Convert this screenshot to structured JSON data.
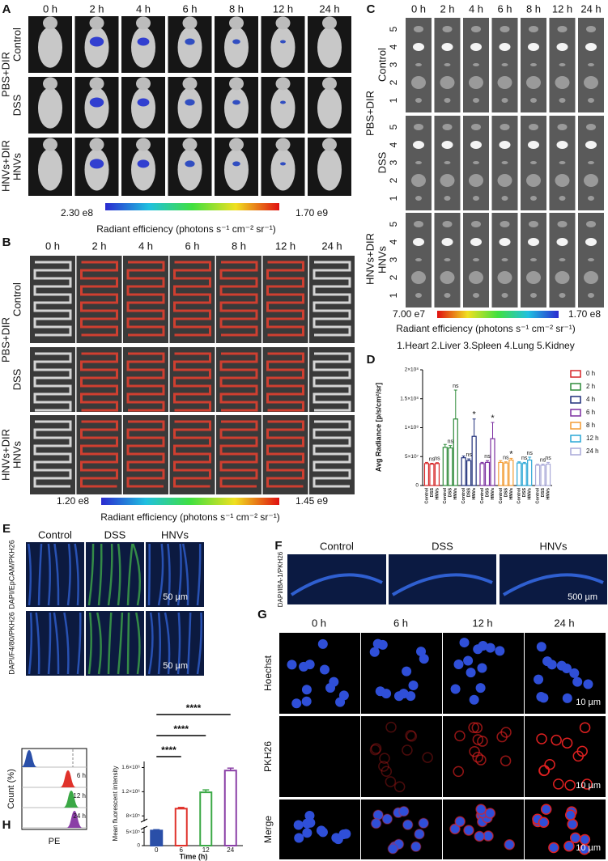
{
  "panels": {
    "A": {
      "label": "A",
      "times": [
        "0 h",
        "2 h",
        "4 h",
        "6 h",
        "8 h",
        "12 h",
        "24 h"
      ],
      "rows": [
        "Control",
        "DSS",
        "HNVs"
      ],
      "groups": [
        "PBS+DIR",
        "HNVs+DIR"
      ],
      "scale_min": "2.30 e8",
      "scale_max": "1.70 e9",
      "scale_title": "Radiant efficiency (photons s⁻¹ cm⁻² sr⁻¹)"
    },
    "B": {
      "label": "B",
      "times": [
        "0 h",
        "2 h",
        "4 h",
        "6 h",
        "8 h",
        "12 h",
        "24 h"
      ],
      "rows": [
        "Control",
        "DSS",
        "HNVs"
      ],
      "groups": [
        "PBS+DIR",
        "HNVs+DIR"
      ],
      "scale_min": "1.20 e8",
      "scale_max": "1.45 e9",
      "scale_title": "Radiant efficiency (photons s⁻¹ cm⁻² sr⁻¹)"
    },
    "C": {
      "label": "C",
      "times": [
        "0 h",
        "2 h",
        "4 h",
        "6 h",
        "8 h",
        "12 h",
        "24 h"
      ],
      "rows": [
        "Control",
        "DSS",
        "HNVs"
      ],
      "groups": [
        "PBS+DIR",
        "HNVs+DIR"
      ],
      "organ_numbers": [
        "5",
        "4",
        "3",
        "2",
        "1"
      ],
      "scale_min": "7.00 e7",
      "scale_max": "1.70 e8",
      "scale_title": "Radiant efficiency (photons s⁻¹ cm⁻² sr⁻¹)",
      "organ_key": "1.Heart 2.Liver 3.Spleen 4.Lung 5.Kidney"
    },
    "E": {
      "label": "E",
      "columns": [
        "Control",
        "DSS",
        "HNVs"
      ],
      "rows": [
        "DAPI/EpCAM/PKH26",
        "DAPI/F4/80/PKH26"
      ],
      "scale_bar": "50 µm"
    },
    "F": {
      "label": "F",
      "columns": [
        "Control",
        "DSS",
        "HNVs"
      ],
      "row": "DAPI/IBA-1/PKH26",
      "scale_bar": "500 µm"
    },
    "G": {
      "label": "G",
      "columns": [
        "0 h",
        "6 h",
        "12 h",
        "24 h"
      ],
      "rows": [
        "Hoechst",
        "PKH26",
        "Merge"
      ],
      "scale_bar": "10 µm"
    },
    "H": {
      "label": "H",
      "histogram_labels": [
        "6 h",
        "12 h",
        "24 h"
      ],
      "histogram_ylabel": "Count (%)",
      "histogram_xlabel": "PE"
    }
  },
  "chart_data": [
    {
      "type": "bar",
      "label": "D",
      "ylabel": "Avg Radiance [p/s/cm²/sr]",
      "categories": [
        "Control",
        "DSS",
        "HNVs"
      ],
      "series": [
        {
          "name": "0 h",
          "color": "#d62728",
          "values": [
            38000000,
            37000000,
            38000000
          ],
          "errors": [
            2000000,
            1500000,
            1500000
          ],
          "annotations": [
            null,
            "ns",
            "ns"
          ]
        },
        {
          "name": "2 h",
          "color": "#2e8b3a",
          "values": [
            66000000,
            65000000,
            115000000
          ],
          "errors": [
            5000000,
            4000000,
            50000000
          ],
          "annotations": [
            null,
            "ns",
            "ns"
          ]
        },
        {
          "name": "4 h",
          "color": "#1f2f7a",
          "values": [
            48000000,
            43000000,
            85000000
          ],
          "errors": [
            3000000,
            3000000,
            30000000
          ],
          "annotations": [
            null,
            "ns",
            "*"
          ]
        },
        {
          "name": "6 h",
          "color": "#7b2fa0",
          "values": [
            38000000,
            40000000,
            81000000
          ],
          "errors": [
            2000000,
            3000000,
            28000000
          ],
          "annotations": [
            null,
            "ns",
            "*"
          ]
        },
        {
          "name": "8 h",
          "color": "#f39c34",
          "values": [
            40000000,
            39000000,
            44000000
          ],
          "errors": [
            3000000,
            2000000,
            3000000
          ],
          "annotations": [
            null,
            "ns",
            "*"
          ]
        },
        {
          "name": "12 h",
          "color": "#2aa7d6",
          "values": [
            39000000,
            38000000,
            44000000
          ],
          "errors": [
            2000000,
            2000000,
            5000000
          ],
          "annotations": [
            null,
            "ns",
            "ns"
          ]
        },
        {
          "name": "24 h",
          "color": "#a9a9d8",
          "values": [
            35000000,
            35000000,
            37000000
          ],
          "errors": [
            2000000,
            2000000,
            3000000
          ],
          "annotations": [
            null,
            "ns",
            "ns"
          ]
        }
      ],
      "ylim": [
        0,
        200000000
      ],
      "yticks": [
        0,
        {
          "value": 50000000,
          "label": "5×10⁷"
        },
        {
          "value": 100000000,
          "label": "1×10⁸"
        },
        {
          "value": 150000000,
          "label": "1.5×10⁸"
        },
        {
          "value": 200000000,
          "label": "2×10⁸"
        }
      ],
      "legend": "right"
    },
    {
      "type": "bar",
      "ylabel": "Mean fluorescent intensity",
      "xlabel": "Time (h)",
      "categories": [
        "0",
        "6",
        "12",
        "24"
      ],
      "values": [
        560000,
        920000,
        1190000,
        1550000
      ],
      "errors": [
        30000,
        20000,
        40000,
        40000
      ],
      "colors": [
        "#2a4fa8",
        "#e0322b",
        "#3aa845",
        "#8a3fa6"
      ],
      "ylim": [
        0,
        1700000
      ],
      "ybreak": [
        600000,
        750000
      ],
      "yticks": [
        0,
        {
          "value": 500000,
          "label": "5×10⁵"
        },
        {
          "value": 800000,
          "label": "8×10⁵"
        },
        {
          "value": 1200000,
          "label": "1.2×10⁶"
        },
        {
          "value": 1600000,
          "label": "1.6×10⁶"
        }
      ],
      "brackets": [
        "****",
        "****",
        "****"
      ]
    }
  ]
}
